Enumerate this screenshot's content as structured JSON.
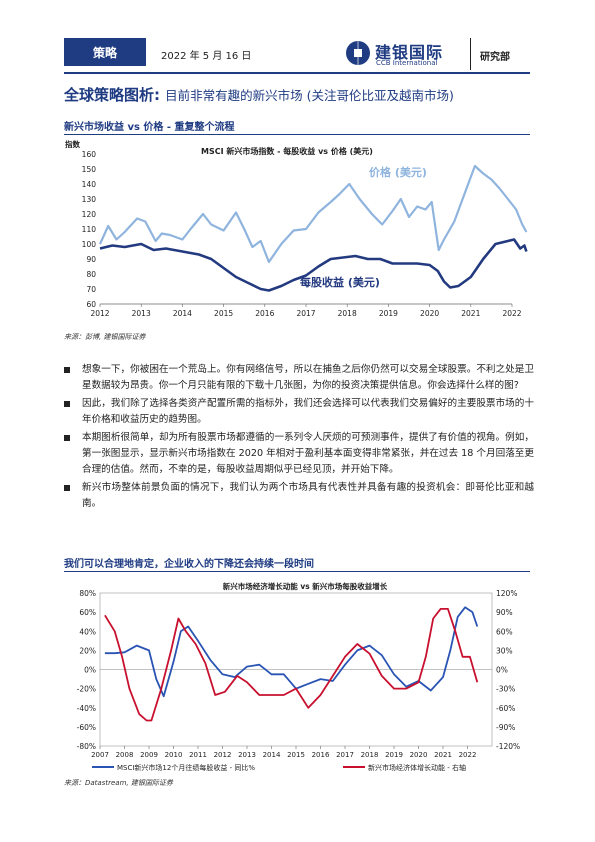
{
  "header": {
    "tag": "策略",
    "date": "2022 年 5 月 16 日",
    "logo_cn": "建银国际",
    "logo_en": "CCB International",
    "dept": "研究部"
  },
  "title": {
    "main": "全球策略图析:",
    "sub": "目前非常有趣的新兴市场 (关注哥伦比亚及越南市场)"
  },
  "section1": {
    "heading": "新兴市场收益 vs 价格 - 重复整个流程",
    "source": "来源：彭博, 建银国际证券"
  },
  "bullets": [
    "想象一下，你被困在一个荒岛上。你有网络信号，所以在捕鱼之后你仍然可以交易全球股票。不利之处是卫星数据较为昂贵。你一个月只能有限的下载十几张图，为你的投资决策提供信息。你会选择什么样的图?",
    "因此，我们除了选择各类资产配置所需的指标外，我们还会选择可以代表我们交易偏好的主要股票市场的十年价格和收益历史的趋势图。",
    "本期图析很简单，却为所有股票市场都遵循的一系列令人厌烦的可预测事件，提供了有价值的视角。例如，第一张图显示，显示新兴市场指数在 2020 年相对于盈利基本面变得非常紧张，并在过去 18 个月回落至更合理的估值。然而，不幸的是，每股收益周期似乎已经见顶，并开始下降。",
    "新兴市场整体前景负面的情况下，我们认为两个市场具有代表性并具备有趣的投资机会：即哥伦比亚和越南。"
  ],
  "section2": {
    "heading": "我们可以合理地肯定，企业收入的下降还会持续一段时间",
    "source": "来源：Datastream, 建银国际证券"
  },
  "colors": {
    "navy": "#1f3b82",
    "price": "#8fb4de",
    "eps": "#233a80",
    "red": "#c8102e",
    "blue": "#2a54b4"
  },
  "chart_data": [
    {
      "type": "line",
      "title": "MSCI 新兴市场指数 - 每股收益 vs 价格 (美元)",
      "ylabel": "指数",
      "ylim": [
        60,
        160
      ],
      "yticks": [
        60,
        70,
        80,
        90,
        100,
        110,
        120,
        130,
        140,
        150,
        160
      ],
      "xlim": [
        2012,
        2022
      ],
      "xticks": [
        "2012",
        "2013",
        "2014",
        "2015",
        "2016",
        "2017",
        "2018",
        "2019",
        "2020",
        "2021",
        "2022"
      ],
      "series": [
        {
          "name": "价格 (美元)",
          "x": [
            2012.0,
            2012.2,
            2012.4,
            2012.6,
            2012.9,
            2013.1,
            2013.35,
            2013.5,
            2013.7,
            2014.0,
            2014.2,
            2014.5,
            2014.7,
            2015.0,
            2015.3,
            2015.5,
            2015.7,
            2015.9,
            2016.1,
            2016.4,
            2016.7,
            2017.0,
            2017.3,
            2017.6,
            2017.8,
            2018.05,
            2018.3,
            2018.6,
            2018.85,
            2019.1,
            2019.3,
            2019.5,
            2019.7,
            2019.9,
            2020.05,
            2020.22,
            2020.35,
            2020.6,
            2020.8,
            2021.1,
            2021.3,
            2021.5,
            2021.7,
            2021.9,
            2022.1,
            2022.25,
            2022.35
          ],
          "values": [
            100,
            112,
            103,
            108,
            117,
            115,
            102,
            107,
            106,
            103,
            110,
            120,
            113,
            109,
            121,
            110,
            98,
            102,
            88,
            100,
            109,
            110,
            121,
            128,
            133,
            140,
            130,
            120,
            113,
            122,
            130,
            118,
            125,
            123,
            128,
            96,
            103,
            115,
            130,
            152,
            147,
            143,
            137,
            130,
            123,
            113,
            108
          ]
        },
        {
          "name": "每股收益 (美元)",
          "x": [
            2012.0,
            2012.3,
            2012.6,
            2013.0,
            2013.3,
            2013.6,
            2014.0,
            2014.4,
            2014.7,
            2015.0,
            2015.3,
            2015.6,
            2015.9,
            2016.1,
            2016.4,
            2016.7,
            2017.0,
            2017.3,
            2017.6,
            2017.9,
            2018.2,
            2018.5,
            2018.8,
            2019.1,
            2019.4,
            2019.7,
            2020.0,
            2020.2,
            2020.35,
            2020.5,
            2020.7,
            2021.0,
            2021.3,
            2021.6,
            2021.9,
            2022.05,
            2022.2,
            2022.3,
            2022.35
          ],
          "values": [
            97,
            99,
            98,
            100,
            96,
            97,
            95,
            93,
            90,
            84,
            78,
            74,
            70,
            69,
            72,
            76,
            79,
            85,
            90,
            91,
            92,
            90,
            90,
            87,
            87,
            87,
            86,
            82,
            75,
            71,
            72,
            78,
            90,
            100,
            102,
            103,
            97,
            99,
            95
          ]
        }
      ]
    },
    {
      "type": "line",
      "title": "新兴市场经济增长动能 vs 新兴市场每股收益增长",
      "ylim": [
        -80,
        80
      ],
      "yticks": [
        "80%",
        "60%",
        "40%",
        "20%",
        "0%",
        "-20%",
        "-40%",
        "-60%",
        "-80%"
      ],
      "y2lim": [
        -120,
        120
      ],
      "y2ticks": [
        "120%",
        "90%",
        "60%",
        "30%",
        "0%",
        "-30%",
        "-60%",
        "-90%",
        "-120%"
      ],
      "xlim": [
        2007,
        2023
      ],
      "xticks": [
        "2007",
        "2008",
        "2009",
        "2010",
        "2011",
        "2012",
        "2013",
        "2014",
        "2015",
        "2016",
        "2017",
        "2018",
        "2019",
        "2020",
        "2021",
        "2022"
      ],
      "series": [
        {
          "name": "MSCI新兴市场12个月往绩每股收益 - 同比%",
          "axis": "left",
          "x": [
            2007.2,
            2007.6,
            2008.0,
            2008.5,
            2009.0,
            2009.3,
            2009.6,
            2010.0,
            2010.3,
            2010.6,
            2011.0,
            2011.5,
            2012.0,
            2012.5,
            2013.0,
            2013.5,
            2014.0,
            2014.5,
            2015.0,
            2015.5,
            2016.0,
            2016.5,
            2017.0,
            2017.5,
            2018.0,
            2018.5,
            2019.0,
            2019.5,
            2020.0,
            2020.5,
            2021.0,
            2021.3,
            2021.6,
            2021.9,
            2022.2,
            2022.4
          ],
          "values": [
            17,
            17,
            18,
            25,
            20,
            -10,
            -28,
            8,
            40,
            45,
            30,
            10,
            -5,
            -8,
            3,
            5,
            -5,
            -5,
            -20,
            -15,
            -10,
            -12,
            5,
            20,
            25,
            15,
            -5,
            -18,
            -12,
            -22,
            -8,
            20,
            55,
            65,
            60,
            45
          ]
        },
        {
          "name": "新兴市场经济体增长动能 - 右轴",
          "axis": "right",
          "x": [
            2007.2,
            2007.6,
            2007.9,
            2008.2,
            2008.6,
            2008.9,
            2009.1,
            2009.5,
            2009.9,
            2010.2,
            2010.5,
            2010.9,
            2011.3,
            2011.7,
            2012.1,
            2012.6,
            2013.0,
            2013.5,
            2014.0,
            2014.5,
            2015.0,
            2015.5,
            2016.0,
            2016.5,
            2017.0,
            2017.5,
            2018.0,
            2018.5,
            2019.0,
            2019.5,
            2020.0,
            2020.3,
            2020.6,
            2020.9,
            2021.2,
            2021.5,
            2021.8,
            2022.1,
            2022.4
          ],
          "values": [
            85,
            60,
            20,
            -30,
            -70,
            -80,
            -80,
            -30,
            30,
            80,
            60,
            40,
            10,
            -40,
            -35,
            -10,
            -20,
            -40,
            -40,
            -40,
            -30,
            -60,
            -40,
            -10,
            20,
            40,
            25,
            -10,
            -30,
            -30,
            -20,
            20,
            80,
            95,
            95,
            60,
            20,
            20,
            -20
          ]
        }
      ]
    }
  ]
}
